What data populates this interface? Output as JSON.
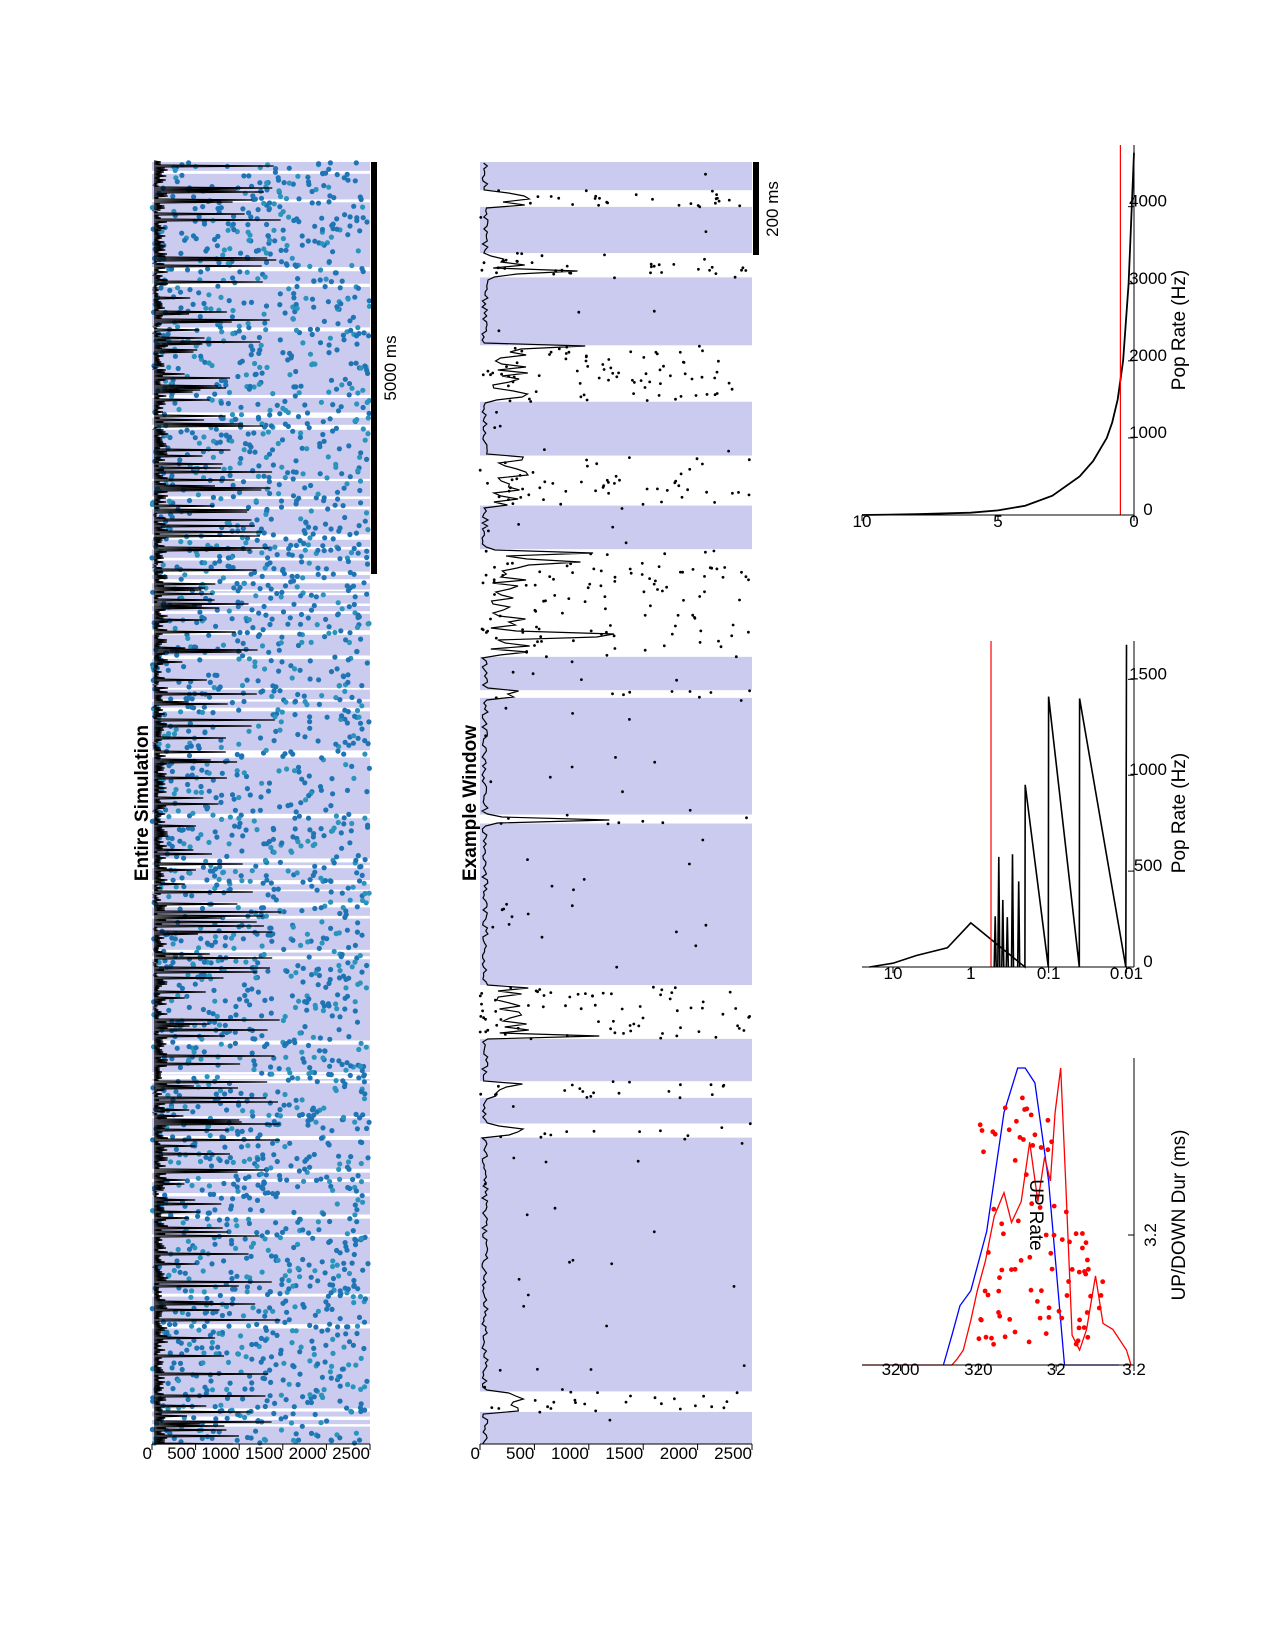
{
  "chart_data": [
    {
      "id": "entire",
      "type": "scatter",
      "title": "Entire Simulation",
      "xlabel": "",
      "ylabel": "",
      "yticks": [
        0,
        500,
        1000,
        1500,
        2000,
        2500
      ],
      "ylim": [
        0,
        2500
      ],
      "scale_bar": "5000 ms",
      "colors": {
        "spikes": "#1f74b4",
        "spikes_light": "#2a94bd",
        "trace": "#000000",
        "up_state": "#cacbee"
      },
      "series": [
        {
          "values": []
        }
      ]
    },
    {
      "id": "window",
      "type": "scatter",
      "title": "Example Window",
      "xlabel": "",
      "ylabel": "",
      "yticks": [
        0,
        500,
        1000,
        1500,
        2000,
        2500
      ],
      "ylim": [
        0,
        2500
      ],
      "scale_bar": "200 ms",
      "colors": {
        "spikes": "#000000",
        "trace": "#000000",
        "up_state": "#cacbee"
      },
      "up_states": [
        [
          0,
          2.5
        ],
        [
          4.1,
          23.9
        ],
        [
          25,
          27
        ],
        [
          28.3,
          31.6
        ],
        [
          35.8,
          48.4
        ],
        [
          49.1,
          58.2
        ],
        [
          58.8,
          61.4
        ],
        [
          69.8,
          73.2
        ],
        [
          77.1,
          81.3
        ],
        [
          85.7,
          91
        ],
        [
          92.9,
          96.5
        ],
        [
          97.8,
          100
        ]
      ],
      "series": [
        {
          "values": []
        }
      ]
    },
    {
      "id": "updown",
      "type": "line",
      "title": "",
      "xlabel": "UP/DOWN Dur (ms)",
      "ylabel": "UP Rate",
      "xscale": "log",
      "xticks": [
        "3.2",
        "32",
        "320",
        "3200"
      ],
      "yticks": [
        "3.2"
      ],
      "xlim": [
        3.2,
        10000
      ],
      "series": [
        {
          "color": "#0000ff",
          "x": [
            5,
            10,
            25,
            40,
            60,
            80,
            100,
            150,
            250,
            400,
            550,
            700,
            900
          ],
          "values": [
            0,
            0,
            0,
            0.62,
            0.95,
            1.0,
            1.0,
            0.85,
            0.45,
            0.25,
            0.2,
            0.1,
            0
          ]
        },
        {
          "color": "#ff0000",
          "x": [
            3.5,
            4,
            6,
            8,
            10,
            13,
            16,
            20,
            24,
            28,
            33,
            38,
            45,
            55,
            70,
            90,
            120,
            150,
            200,
            260,
            330,
            400,
            500,
            600,
            700,
            900,
            10000
          ],
          "values": [
            0,
            0.05,
            0.12,
            0.14,
            0.3,
            0.12,
            0.05,
            0.1,
            0.6,
            1.0,
            0.85,
            0.62,
            0.7,
            0.55,
            0.75,
            0.55,
            0.48,
            0.58,
            0.5,
            0.35,
            0.25,
            0.15,
            0.05,
            0.02,
            0,
            0,
            0
          ]
        }
      ],
      "scatter": {
        "color": "#ff0000",
        "points": []
      }
    },
    {
      "id": "poprate_log",
      "type": "line",
      "title": "",
      "xlabel": "Pop Rate (Hz)",
      "ylabel": "",
      "xscale": "log",
      "xticks": [
        "0.01",
        "0.1",
        "1",
        "10"
      ],
      "yticks": [
        0,
        500,
        1000,
        1500
      ],
      "ylim": [
        0,
        1700
      ],
      "threshold": 0.55,
      "series": [
        {
          "color": "#000000",
          "name": "",
          "x": [
            0.01,
            0.0102,
            0.04,
            0.0404,
            0.1,
            0.101,
            0.2,
            0.202,
            1,
            2,
            5,
            10,
            20
          ],
          "values": [
            1680,
            0,
            1400,
            0,
            1410,
            0,
            950,
            0,
            230,
            100,
            60,
            20,
            0
          ]
        }
      ]
    },
    {
      "id": "poprate_lin",
      "type": "line",
      "title": "",
      "xlabel": "Pop Rate (Hz)",
      "ylabel": "",
      "xticks": [
        0,
        5,
        10
      ],
      "yticks": [
        0,
        1000,
        2000,
        3000,
        4000
      ],
      "xlim": [
        0,
        10
      ],
      "ylim": [
        0,
        4800
      ],
      "threshold": 0.5,
      "series": [
        {
          "color": "#000000",
          "name": "",
          "x": [
            0,
            0.2,
            0.4,
            0.6,
            0.8,
            1,
            1.5,
            2,
            3,
            4,
            5,
            6,
            8,
            10
          ],
          "values": [
            4700,
            3000,
            2000,
            1500,
            1200,
            1000,
            700,
            500,
            250,
            120,
            60,
            30,
            10,
            0
          ]
        }
      ]
    }
  ]
}
